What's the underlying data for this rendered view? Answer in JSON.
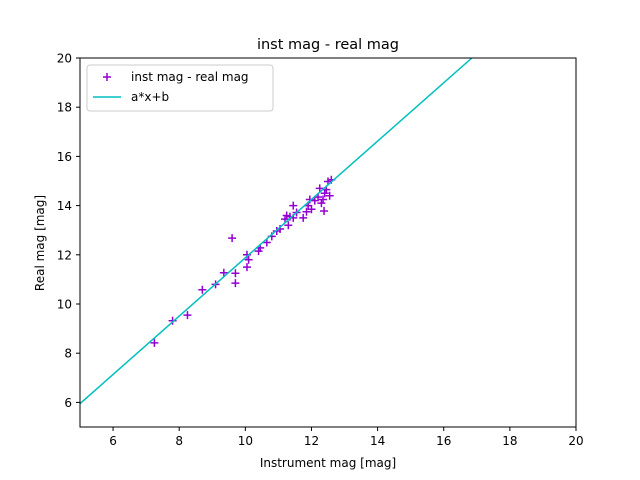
{
  "chart_data": {
    "type": "scatter",
    "title": "inst mag - real mag",
    "xlabel": "Instrument mag [mag]",
    "ylabel": "Real mag [mag]",
    "xlim": [
      5,
      20
    ],
    "ylim": [
      5,
      20
    ],
    "xticks": [
      6,
      8,
      10,
      12,
      14,
      16,
      18,
      20
    ],
    "yticks": [
      6,
      8,
      10,
      12,
      14,
      16,
      18,
      20
    ],
    "grid": false,
    "legend_position": "top-left",
    "series": [
      {
        "name": "inst mag - real mag",
        "marker": "+",
        "color": "#9400d3",
        "points": [
          [
            7.25,
            8.42
          ],
          [
            7.8,
            9.32
          ],
          [
            8.25,
            9.55
          ],
          [
            8.7,
            10.58
          ],
          [
            9.1,
            10.8
          ],
          [
            9.35,
            11.27
          ],
          [
            9.6,
            12.68
          ],
          [
            9.7,
            10.85
          ],
          [
            9.7,
            11.25
          ],
          [
            10.05,
            11.5
          ],
          [
            10.05,
            12.0
          ],
          [
            10.1,
            11.8
          ],
          [
            10.4,
            12.15
          ],
          [
            10.45,
            12.28
          ],
          [
            10.65,
            12.5
          ],
          [
            10.8,
            12.75
          ],
          [
            10.95,
            12.97
          ],
          [
            11.05,
            13.05
          ],
          [
            11.2,
            13.45
          ],
          [
            11.25,
            13.6
          ],
          [
            11.3,
            13.2
          ],
          [
            11.35,
            13.55
          ],
          [
            11.45,
            13.5
          ],
          [
            11.45,
            14.0
          ],
          [
            11.55,
            13.72
          ],
          [
            11.75,
            13.5
          ],
          [
            11.85,
            13.75
          ],
          [
            11.9,
            14.0
          ],
          [
            11.95,
            14.25
          ],
          [
            12.0,
            13.85
          ],
          [
            12.1,
            14.2
          ],
          [
            12.2,
            14.35
          ],
          [
            12.25,
            14.7
          ],
          [
            12.3,
            14.1
          ],
          [
            12.35,
            14.25
          ],
          [
            12.38,
            13.78
          ],
          [
            12.4,
            14.5
          ],
          [
            12.45,
            14.65
          ],
          [
            12.5,
            14.98
          ],
          [
            12.55,
            14.4
          ],
          [
            12.6,
            15.05
          ]
        ]
      },
      {
        "name": "a*x+b",
        "type": "line",
        "color": "#00bfbf",
        "points": [
          [
            5.0,
            5.95
          ],
          [
            16.85,
            20.0
          ]
        ]
      }
    ]
  }
}
